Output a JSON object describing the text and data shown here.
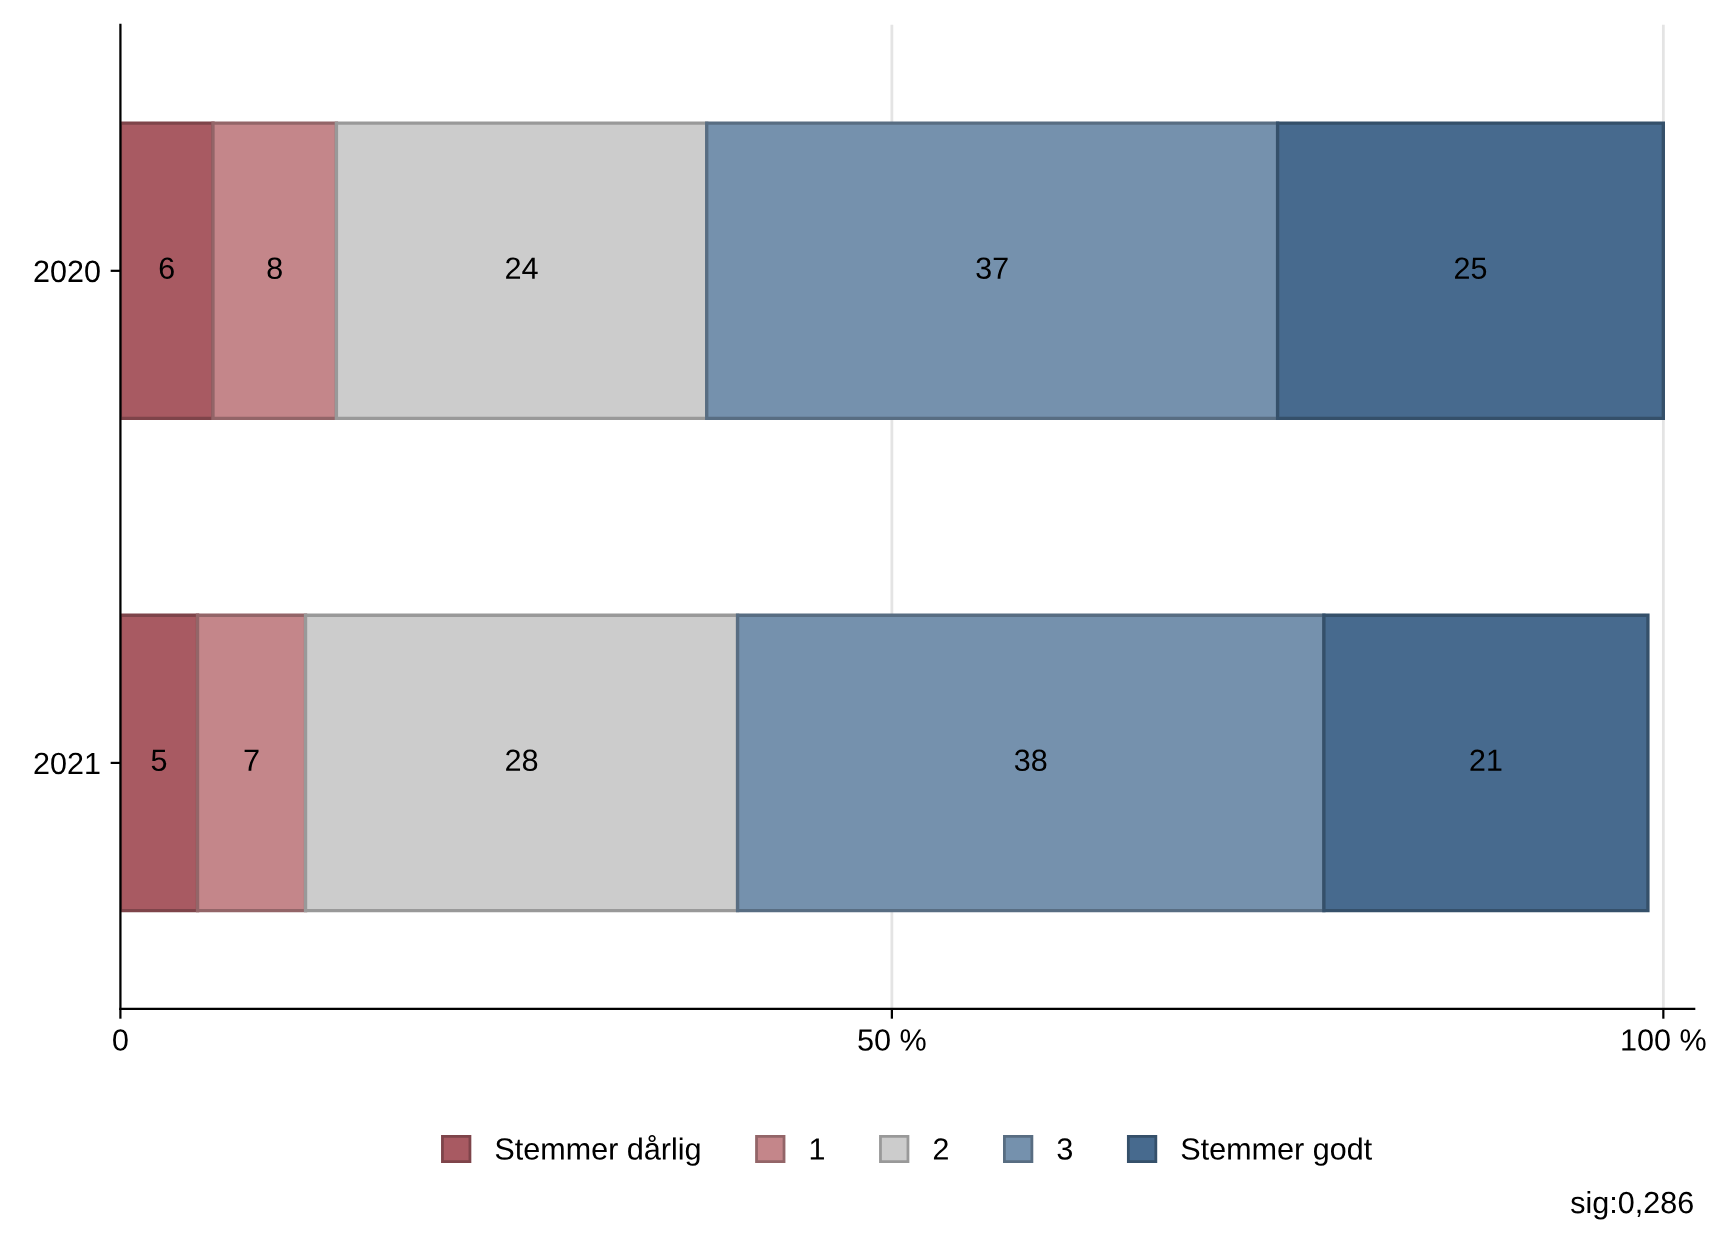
{
  "chart_data": {
    "type": "bar",
    "orientation": "horizontal",
    "stacked": true,
    "categories": [
      "2020",
      "2021"
    ],
    "series": [
      {
        "name": "Stemmer dårlig",
        "color": "#a85a62",
        "values": [
          6,
          5
        ]
      },
      {
        "name": "1",
        "color": "#c4868a",
        "values": [
          8,
          7
        ]
      },
      {
        "name": "2",
        "color": "#cccccc",
        "values": [
          24,
          28
        ]
      },
      {
        "name": "3",
        "color": "#7591ad",
        "values": [
          37,
          38
        ]
      },
      {
        "name": "Stemmer godt",
        "color": "#476a8e",
        "values": [
          25,
          21
        ]
      }
    ],
    "xlim": [
      0,
      102
    ],
    "xticks": [
      0,
      {
        "value": 50,
        "label": "50 %"
      },
      {
        "value": 100,
        "label": "100 %"
      }
    ],
    "grid": "x",
    "legend": "bottom",
    "data_labels": true,
    "annotations": [
      "sig:0,286"
    ]
  }
}
